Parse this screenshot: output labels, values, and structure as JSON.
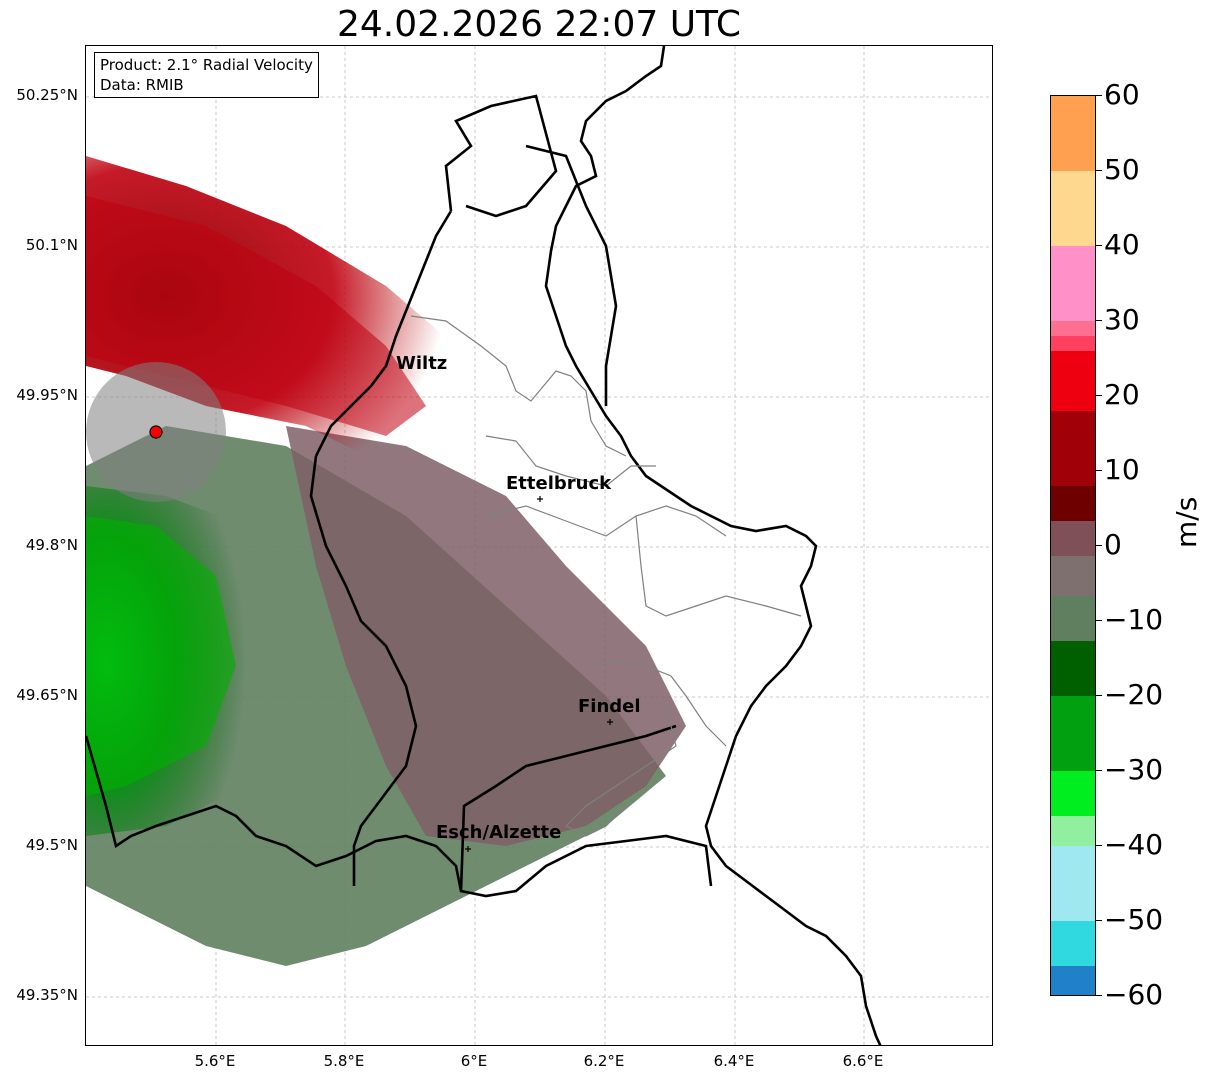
{
  "title": "24.02.2026 22:07 UTC",
  "info": {
    "product": "Product: 2.1° Radial Velocity",
    "source": "Data: RMIB"
  },
  "latitude_ticks": [
    "50.25°N",
    "50.1°N",
    "49.95°N",
    "49.8°N",
    "49.65°N",
    "49.5°N",
    "49.35°N"
  ],
  "longitude_ticks": [
    "5.6°E",
    "5.8°E",
    "6°E",
    "6.2°E",
    "6.4°E",
    "6.6°E"
  ],
  "cities": [
    {
      "name": "Wiltz",
      "lon": 5.93,
      "lat": 49.97
    },
    {
      "name": "Ettelbruck",
      "lon": 6.1,
      "lat": 49.85
    },
    {
      "name": "Findel",
      "lon": 6.21,
      "lat": 49.63
    },
    {
      "name": "Esch/Alzette",
      "lon": 5.98,
      "lat": 49.5
    }
  ],
  "radar_site": {
    "lon": 5.505,
    "lat": 49.914
  },
  "colorbar": {
    "unit": "m/s",
    "min": -60,
    "max": 60,
    "tick_labels": [
      "60",
      "50",
      "40",
      "30",
      "20",
      "10",
      "0",
      "−10",
      "−20",
      "−30",
      "−40",
      "−50",
      "−60"
    ]
  },
  "colors": {
    "approaching": "#00b000",
    "receding": "#b00000",
    "near_zero_negative": "#5f7f5f",
    "near_zero_positive": "#7f5f67",
    "radar_marker": "#ff0000"
  }
}
